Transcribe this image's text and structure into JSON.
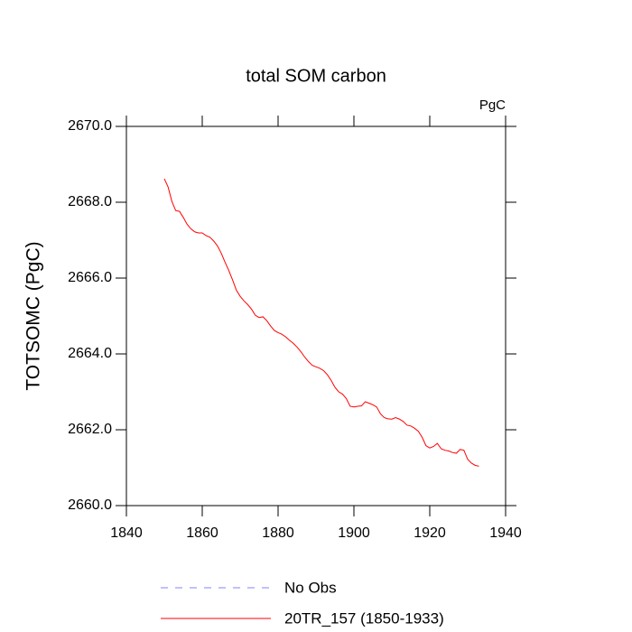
{
  "chart_data": {
    "type": "line",
    "title": "total SOM carbon",
    "units": "PgC",
    "y_label": "TOTSOMC  (PgC)",
    "x": [
      1850,
      1851,
      1852,
      1853,
      1854,
      1855,
      1856,
      1857,
      1858,
      1859,
      1860,
      1861,
      1862,
      1863,
      1864,
      1865,
      1866,
      1867,
      1868,
      1869,
      1870,
      1871,
      1872,
      1873,
      1874,
      1875,
      1876,
      1877,
      1878,
      1879,
      1880,
      1881,
      1882,
      1883,
      1884,
      1885,
      1886,
      1887,
      1888,
      1889,
      1890,
      1891,
      1892,
      1893,
      1894,
      1895,
      1896,
      1897,
      1898,
      1899,
      1900,
      1901,
      1902,
      1903,
      1904,
      1905,
      1906,
      1907,
      1908,
      1909,
      1910,
      1911,
      1912,
      1913,
      1914,
      1915,
      1916,
      1917,
      1918,
      1919,
      1920,
      1921,
      1922,
      1923,
      1924,
      1925,
      1926,
      1927,
      1928,
      1929,
      1930,
      1931,
      1932,
      1933
    ],
    "series": [
      {
        "name": "20TR_157 (1850-1933)",
        "color": "#ff0000",
        "values": [
          2668.62,
          2668.4,
          2668.02,
          2667.78,
          2667.76,
          2667.6,
          2667.42,
          2667.3,
          2667.22,
          2667.19,
          2667.19,
          2667.12,
          2667.08,
          2666.98,
          2666.85,
          2666.66,
          2666.42,
          2666.2,
          2665.95,
          2665.68,
          2665.52,
          2665.4,
          2665.3,
          2665.18,
          2665.02,
          2664.96,
          2664.98,
          2664.88,
          2664.74,
          2664.62,
          2664.56,
          2664.52,
          2664.45,
          2664.36,
          2664.28,
          2664.18,
          2664.06,
          2663.92,
          2663.8,
          2663.7,
          2663.66,
          2663.62,
          2663.56,
          2663.45,
          2663.3,
          2663.12,
          2663.0,
          2662.94,
          2662.82,
          2662.62,
          2662.6,
          2662.62,
          2662.63,
          2662.74,
          2662.7,
          2662.66,
          2662.6,
          2662.42,
          2662.32,
          2662.29,
          2662.28,
          2662.32,
          2662.28,
          2662.22,
          2662.12,
          2662.1,
          2662.04,
          2661.96,
          2661.8,
          2661.58,
          2661.52,
          2661.56,
          2661.64,
          2661.5,
          2661.46,
          2661.44,
          2661.4,
          2661.38,
          2661.48,
          2661.46,
          2661.22,
          2661.12,
          2661.06,
          2661.04
        ]
      }
    ],
    "observations": {
      "name": "No Obs",
      "color": "#8080ff",
      "dashed": true
    },
    "xlim": [
      1840,
      1940
    ],
    "xticks": [
      1840,
      1860,
      1880,
      1900,
      1920,
      1940
    ],
    "ylim": [
      2660,
      2670
    ],
    "yticks": [
      {
        "value": 2660,
        "label": "2660.0"
      },
      {
        "value": 2662,
        "label": "2662.0"
      },
      {
        "value": 2664,
        "label": "2664.0"
      },
      {
        "value": 2666,
        "label": "2666.0"
      },
      {
        "value": 2668,
        "label": "2668.0"
      },
      {
        "value": 2670,
        "label": "2670.0"
      }
    ]
  }
}
